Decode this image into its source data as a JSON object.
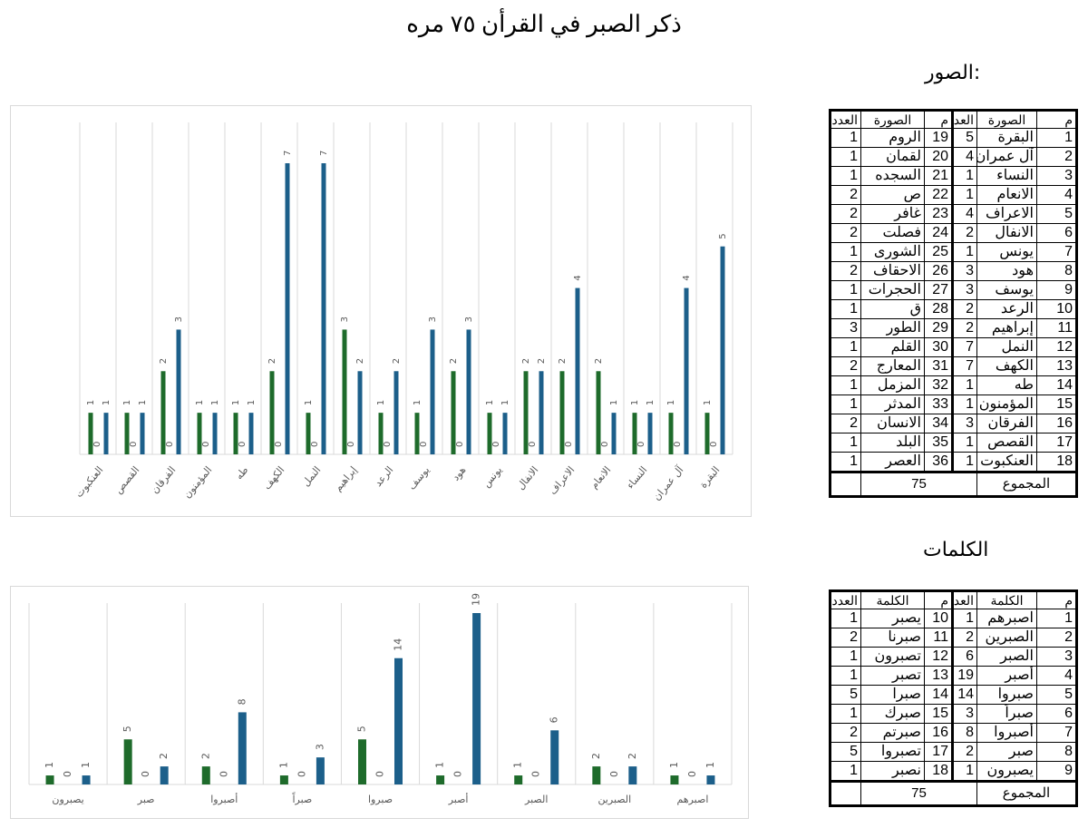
{
  "page": {
    "title": "ذكر الصبر في القرأن ٧٥ مره",
    "surahs_heading": "الصور:",
    "words_heading": "الكلمات"
  },
  "colors": {
    "series_a": "#1e6b2b",
    "series_b": "#1c5f8a",
    "grid": "#d9d9d9",
    "label": "#595959"
  },
  "surah_table": {
    "headers": {
      "index": "م",
      "name": "الصورة",
      "count": "العدد"
    },
    "rows": [
      {
        "i": "1",
        "name": "البقرة",
        "count": "5",
        "i2": "19",
        "name2": "الروم",
        "count2": "1"
      },
      {
        "i": "2",
        "name": "آل عمران",
        "count": "4",
        "i2": "20",
        "name2": "لقمان",
        "count2": "1"
      },
      {
        "i": "3",
        "name": "النساء",
        "count": "1",
        "i2": "21",
        "name2": "السجده",
        "count2": "1"
      },
      {
        "i": "4",
        "name": "الانعام",
        "count": "1",
        "i2": "22",
        "name2": "ص",
        "count2": "2"
      },
      {
        "i": "5",
        "name": "الاعراف",
        "count": "4",
        "i2": "23",
        "name2": "غافر",
        "count2": "2"
      },
      {
        "i": "6",
        "name": "الانفال",
        "count": "2",
        "i2": "24",
        "name2": "فصلت",
        "count2": "2"
      },
      {
        "i": "7",
        "name": "يونس",
        "count": "1",
        "i2": "25",
        "name2": "الشورى",
        "count2": "1"
      },
      {
        "i": "8",
        "name": "هود",
        "count": "3",
        "i2": "26",
        "name2": "الاحقاف",
        "count2": "2"
      },
      {
        "i": "9",
        "name": "يوسف",
        "count": "3",
        "i2": "27",
        "name2": "الحجرات",
        "count2": "1"
      },
      {
        "i": "10",
        "name": "الرعد",
        "count": "2",
        "i2": "28",
        "name2": "ق",
        "count2": "1"
      },
      {
        "i": "11",
        "name": "إبراهيم",
        "count": "2",
        "i2": "29",
        "name2": "الطور",
        "count2": "3"
      },
      {
        "i": "12",
        "name": "النمل",
        "count": "7",
        "i2": "30",
        "name2": "القلم",
        "count2": "1"
      },
      {
        "i": "13",
        "name": "الكهف",
        "count": "7",
        "i2": "31",
        "name2": "المعارج",
        "count2": "2"
      },
      {
        "i": "14",
        "name": "طه",
        "count": "1",
        "i2": "32",
        "name2": "المزمل",
        "count2": "1"
      },
      {
        "i": "15",
        "name": "المؤمنون",
        "count": "1",
        "i2": "33",
        "name2": "المدثر",
        "count2": "1"
      },
      {
        "i": "16",
        "name": "الفرقان",
        "count": "3",
        "i2": "34",
        "name2": "الانسان",
        "count2": "2"
      },
      {
        "i": "17",
        "name": "القصص",
        "count": "1",
        "i2": "35",
        "name2": "البلد",
        "count2": "1"
      },
      {
        "i": "18",
        "name": "العنكبوت",
        "count": "1",
        "i2": "36",
        "name2": "العصر",
        "count2": "1"
      }
    ],
    "total_label": "المجموع",
    "total_value": "75"
  },
  "word_table": {
    "headers": {
      "index": "م",
      "name": "الكلمة",
      "count": "العدد"
    },
    "rows": [
      {
        "i": "1",
        "name": "اصبرهم",
        "count": "1",
        "i2": "10",
        "name2": "يصبر",
        "count2": "1"
      },
      {
        "i": "2",
        "name": "الصبرين",
        "count": "2",
        "i2": "11",
        "name2": "صبرنا",
        "count2": "2"
      },
      {
        "i": "3",
        "name": "الصبر",
        "count": "6",
        "i2": "12",
        "name2": "تصبرون",
        "count2": "1"
      },
      {
        "i": "4",
        "name": "أصبر",
        "count": "19",
        "i2": "13",
        "name2": "تصبر",
        "count2": "1"
      },
      {
        "i": "5",
        "name": "صبروا",
        "count": "14",
        "i2": "14",
        "name2": "صبرا",
        "count2": "5"
      },
      {
        "i": "6",
        "name": "صبراً",
        "count": "3",
        "i2": "15",
        "name2": "صبرك",
        "count2": "1"
      },
      {
        "i": "7",
        "name": "أصبروا",
        "count": "8",
        "i2": "16",
        "name2": "صبرتم",
        "count2": "2"
      },
      {
        "i": "8",
        "name": "صبر",
        "count": "2",
        "i2": "17",
        "name2": "تصبروا",
        "count2": "5"
      },
      {
        "i": "9",
        "name": "يصبرون",
        "count": "1",
        "i2": "18",
        "name2": "نصبر",
        "count2": "1"
      }
    ],
    "total_label": "المجموع",
    "total_value": "75"
  },
  "chart_data": [
    {
      "type": "bar",
      "title": "",
      "xlabel": "",
      "ylabel": "",
      "direction": "right-to-left",
      "grid": true,
      "ylim": [
        0,
        7
      ],
      "categories": [
        "البقرة",
        "آل عمران",
        "النساء",
        "الانعام",
        "الاعراف",
        "الانفال",
        "يونس",
        "هود",
        "يوسف",
        "الرعد",
        "إبراهيم",
        "النمل",
        "الكهف",
        "طه",
        "المؤمنون",
        "الفرقان",
        "القصص",
        "العنكبوت"
      ],
      "series": [
        {
          "name": "م",
          "values": [
            0,
            0,
            0,
            0,
            0,
            0,
            0,
            0,
            0,
            0,
            0,
            0,
            0,
            0,
            0,
            0,
            0,
            0
          ]
        },
        {
          "name": "series-green",
          "values": [
            1,
            1,
            1,
            2,
            2,
            2,
            1,
            2,
            1,
            1,
            3,
            1,
            2,
            1,
            1,
            2,
            1,
            1
          ]
        },
        {
          "name": "series-blue",
          "values": [
            5,
            4,
            1,
            1,
            4,
            2,
            1,
            3,
            3,
            2,
            2,
            7,
            7,
            1,
            1,
            3,
            1,
            1
          ]
        }
      ]
    },
    {
      "type": "bar",
      "title": "",
      "xlabel": "",
      "ylabel": "",
      "direction": "right-to-left",
      "grid": true,
      "ylim": [
        0,
        19
      ],
      "categories": [
        "اصبرهم",
        "الصبرين",
        "الصبر",
        "أصبر",
        "صبروا",
        "صبراً",
        "أصبروا",
        "صبر",
        "يصبرون"
      ],
      "series": [
        {
          "name": "series-green",
          "values": [
            1,
            2,
            1,
            1,
            5,
            1,
            2,
            5,
            1
          ]
        },
        {
          "name": "م",
          "values": [
            0,
            0,
            0,
            0,
            0,
            0,
            0,
            0,
            0
          ]
        },
        {
          "name": "series-blue",
          "values": [
            1,
            2,
            6,
            19,
            14,
            3,
            8,
            2,
            1
          ]
        }
      ]
    }
  ]
}
